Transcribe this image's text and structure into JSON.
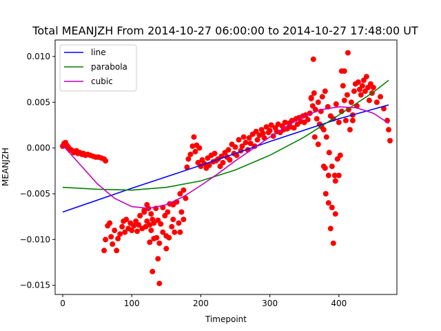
{
  "chart_data": {
    "type": "scatter",
    "title": "Total MEANJZH From 2014-10-27 06:00:00 to 2014-10-27 17:48:00 UT",
    "xlabel": "Timepoint",
    "ylabel": "MEANJZH",
    "xlim": [
      -11,
      484
    ],
    "ylim": [
      -0.016,
      0.0118
    ],
    "xticks": [
      0,
      100,
      200,
      300,
      400
    ],
    "xtick_labels": [
      "0",
      "100",
      "200",
      "300",
      "400"
    ],
    "yticks": [
      -0.015,
      -0.01,
      -0.005,
      0.0,
      0.005,
      0.01
    ],
    "ytick_labels": [
      "−0.015",
      "−0.010",
      "−0.005",
      "0.000",
      "0.005",
      "0.010"
    ],
    "grid": false,
    "legend_position": "top-left",
    "colors": {
      "points": "#ff0000",
      "line": "#0000ff",
      "parabola": "#008000",
      "cubic": "#bf00bf",
      "axes": "#000000"
    },
    "fits": [
      {
        "name": "line",
        "x": [
          0,
          100,
          200,
          300,
          400,
          472
        ],
        "values": [
          -0.007,
          -0.0044,
          -0.0019,
          0.0007,
          0.0032,
          0.0047
        ]
      },
      {
        "name": "parabola",
        "x": [
          0,
          50,
          100,
          150,
          200,
          250,
          300,
          350,
          400,
          450,
          472
        ],
        "values": [
          -0.0043,
          -0.0045,
          -0.0046,
          -0.0043,
          -0.0036,
          -0.0024,
          -0.0008,
          0.0012,
          0.0036,
          0.0061,
          0.0074
        ]
      },
      {
        "name": "cubic",
        "x": [
          0,
          25,
          50,
          75,
          100,
          125,
          150,
          175,
          200,
          225,
          250,
          275,
          300,
          325,
          350,
          375,
          400,
          425,
          450,
          472
        ],
        "values": [
          0.0003,
          -0.0018,
          -0.0039,
          -0.0055,
          -0.0064,
          -0.0066,
          -0.0062,
          -0.0053,
          -0.0041,
          -0.0028,
          -0.0014,
          -0.0001,
          0.0012,
          0.0024,
          0.0035,
          0.0042,
          0.0045,
          0.0044,
          0.0038,
          0.0027
        ]
      }
    ],
    "points": {
      "x": [
        0,
        2,
        4,
        6,
        8,
        10,
        12,
        14,
        16,
        18,
        20,
        22,
        25,
        28,
        30,
        33,
        36,
        40,
        44,
        48,
        52,
        56,
        60,
        62,
        60,
        62,
        65,
        68,
        70,
        72,
        75,
        78,
        80,
        83,
        86,
        88,
        90,
        92,
        95,
        98,
        100,
        103,
        106,
        108,
        110,
        112,
        115,
        118,
        120,
        122,
        124,
        126,
        128,
        130,
        132,
        135,
        138,
        140,
        142,
        145,
        148,
        150,
        152,
        155,
        158,
        160,
        162,
        165,
        168,
        170,
        172,
        175,
        178,
        180,
        182,
        185,
        188,
        190,
        192,
        194,
        196,
        198,
        200,
        202,
        205,
        208,
        210,
        212,
        215,
        218,
        220,
        222,
        225,
        228,
        230,
        232,
        235,
        238,
        240,
        242,
        245,
        248,
        250,
        252,
        255,
        258,
        260,
        262,
        265,
        268,
        270,
        272,
        275,
        278,
        280,
        282,
        285,
        288,
        290,
        292,
        295,
        298,
        300,
        302,
        305,
        308,
        310,
        312,
        315,
        318,
        320,
        322,
        325,
        328,
        330,
        332,
        335,
        338,
        340,
        342,
        345,
        348,
        350,
        352,
        355,
        358,
        360,
        362,
        364,
        366,
        368,
        370,
        372,
        374,
        376,
        378,
        380,
        382,
        384,
        386,
        388,
        390,
        392,
        394,
        396,
        398,
        400,
        402,
        404,
        406,
        408,
        410,
        412,
        414,
        416,
        418,
        420,
        422,
        424,
        426,
        428,
        430,
        432,
        434,
        436,
        438,
        440,
        442,
        444,
        446,
        448,
        450,
        455,
        460,
        465,
        470,
        472,
        474,
        363,
        375,
        378,
        381,
        385,
        388,
        392,
        395,
        126,
        130,
        136,
        140,
        138,
        150,
        154,
        360,
        365,
        370,
        380,
        385,
        390,
        395,
        400,
        404,
        408,
        413,
        420,
        112,
        118,
        122,
        128,
        132,
        145,
        160,
        170,
        175
      ],
      "values": [
        0.0002,
        0.0005,
        0.0006,
        0.0003,
        0.0001,
        -0.0001,
        -0.0002,
        -0.0003,
        -0.0005,
        -0.0004,
        -0.0003,
        -0.0006,
        -0.0005,
        -0.0007,
        -0.0006,
        -0.0008,
        -0.0007,
        -0.0008,
        -0.0009,
        -0.001,
        -0.001,
        -0.0011,
        -0.0012,
        -0.0014,
        -0.0112,
        -0.01,
        -0.0085,
        -0.0082,
        -0.0097,
        -0.0105,
        -0.009,
        -0.0112,
        -0.0099,
        -0.0094,
        -0.0086,
        -0.008,
        -0.0092,
        -0.0078,
        -0.0088,
        -0.0082,
        -0.009,
        -0.0085,
        -0.008,
        -0.0091,
        -0.0084,
        -0.0074,
        -0.0088,
        -0.007,
        -0.0086,
        -0.008,
        -0.0066,
        -0.0084,
        -0.0072,
        -0.0078,
        -0.0099,
        -0.0066,
        -0.0079,
        -0.0104,
        -0.0083,
        -0.0092,
        -0.0074,
        -0.0096,
        -0.007,
        -0.0061,
        -0.0086,
        -0.0078,
        -0.0092,
        -0.0059,
        -0.0082,
        -0.005,
        -0.007,
        -0.0046,
        -0.0055,
        -0.0021,
        -0.0012,
        -0.0007,
        0.0002,
        0.0012,
        -0.0004,
        0.0003,
        -0.0016,
        0.0,
        -0.002,
        -0.0013,
        -0.0017,
        -0.0022,
        -0.0011,
        -0.0019,
        -0.0008,
        -0.0015,
        -0.0006,
        -0.0014,
        -0.0012,
        -0.002,
        -0.0009,
        -0.0016,
        -0.0005,
        -0.001,
        -0.0002,
        -0.0013,
        0.0004,
        -0.0006,
        0.0001,
        -0.0008,
        0.0009,
        -0.0003,
        0.0002,
        0.0012,
        0.0006,
        -0.0002,
        0.0011,
        0.0005,
        0.0015,
        0.0002,
        0.0018,
        0.0009,
        0.0014,
        0.002,
        0.0016,
        0.0011,
        0.0023,
        0.0017,
        0.0019,
        0.0025,
        0.0013,
        0.0022,
        0.0018,
        0.0026,
        0.0017,
        0.0024,
        0.002,
        0.0028,
        0.0021,
        0.0027,
        0.0023,
        0.003,
        0.0022,
        0.0032,
        0.0026,
        0.0033,
        0.0029,
        0.0035,
        0.0028,
        0.0036,
        0.0031,
        0.0038,
        0.0055,
        0.0046,
        0.006,
        0.0042,
        0.0032,
        0.005,
        0.0026,
        0.004,
        0.0056,
        0.002,
        0.0062,
        0.0012,
        0.0045,
        -0.0005,
        0.0035,
        -0.002,
        0.0032,
        -0.003,
        0.0048,
        -0.0012,
        0.0028,
        -0.0008,
        0.004,
        0.0068,
        0.0052,
        0.003,
        0.0058,
        0.0042,
        0.002,
        0.005,
        0.0036,
        0.0062,
        0.007,
        0.0046,
        0.0072,
        0.0064,
        0.0058,
        0.0068,
        0.0074,
        0.0062,
        0.0078,
        0.0066,
        0.0052,
        0.007,
        0.006,
        0.0066,
        0.005,
        0.0056,
        0.0043,
        0.003,
        0.002,
        0.0008,
        0.0097,
        0.0023,
        -0.002,
        -0.005,
        -0.006,
        -0.0088,
        -0.0104,
        -0.0036,
        -0.0103,
        -0.0135,
        -0.0098,
        -0.0148,
        -0.0121,
        -0.011,
        -0.0098,
        0.0054,
        0.0012,
        0.0004,
        -0.0022,
        -0.003,
        -0.0065,
        -0.0072,
        -0.003,
        0.0084,
        0.0084,
        0.0104,
        0.003,
        -0.0074,
        -0.0068,
        -0.0062,
        -0.009,
        -0.0082,
        -0.0065,
        -0.0062,
        -0.0092,
        -0.0078
      ]
    }
  }
}
